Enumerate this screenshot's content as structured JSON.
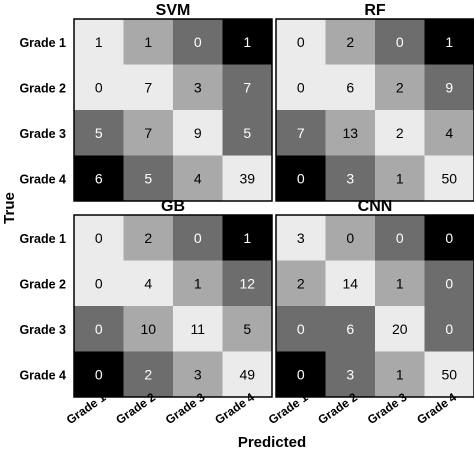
{
  "chart_data": [
    {
      "type": "heatmap",
      "title": "SVM",
      "rows": [
        "Grade 1",
        "Grade 2",
        "Grade 3",
        "Grade 4"
      ],
      "columns": [
        "Grade 1",
        "Grade 2",
        "Grade 3",
        "Grade 4"
      ],
      "values": [
        [
          1,
          1,
          0,
          1
        ],
        [
          0,
          7,
          3,
          7
        ],
        [
          5,
          7,
          9,
          5
        ],
        [
          6,
          5,
          4,
          39
        ]
      ],
      "shades": [
        [
          "#ebebeb",
          "#a9a9a9",
          "#6d6d6d",
          "#000000"
        ],
        [
          "#ebebeb",
          "#ebebeb",
          "#a9a9a9",
          "#6d6d6d"
        ],
        [
          "#6d6d6d",
          "#a9a9a9",
          "#ebebeb",
          "#6d6d6d"
        ],
        [
          "#000000",
          "#6d6d6d",
          "#a9a9a9",
          "#ebebeb"
        ]
      ]
    },
    {
      "type": "heatmap",
      "title": "RF",
      "rows": [
        "Grade 1",
        "Grade 2",
        "Grade 3",
        "Grade 4"
      ],
      "columns": [
        "Grade 1",
        "Grade 2",
        "Grade 3",
        "Grade 4"
      ],
      "values": [
        [
          0,
          2,
          0,
          1
        ],
        [
          0,
          6,
          2,
          9
        ],
        [
          7,
          13,
          2,
          4
        ],
        [
          0,
          3,
          1,
          50
        ]
      ],
      "shades": [
        [
          "#ebebeb",
          "#a9a9a9",
          "#6d6d6d",
          "#000000"
        ],
        [
          "#ebebeb",
          "#ebebeb",
          "#a9a9a9",
          "#6d6d6d"
        ],
        [
          "#6d6d6d",
          "#a9a9a9",
          "#ebebeb",
          "#a9a9a9"
        ],
        [
          "#000000",
          "#6d6d6d",
          "#a9a9a9",
          "#ebebeb"
        ]
      ]
    },
    {
      "type": "heatmap",
      "title": "GB",
      "rows": [
        "Grade 1",
        "Grade 2",
        "Grade 3",
        "Grade 4"
      ],
      "columns": [
        "Grade 1",
        "Grade 2",
        "Grade 3",
        "Grade 4"
      ],
      "values": [
        [
          0,
          2,
          0,
          1
        ],
        [
          0,
          4,
          1,
          12
        ],
        [
          0,
          10,
          11,
          5
        ],
        [
          0,
          2,
          3,
          49
        ]
      ],
      "shades": [
        [
          "#ebebeb",
          "#a9a9a9",
          "#6d6d6d",
          "#000000"
        ],
        [
          "#ebebeb",
          "#ebebeb",
          "#a9a9a9",
          "#6d6d6d"
        ],
        [
          "#6d6d6d",
          "#a9a9a9",
          "#ebebeb",
          "#a9a9a9"
        ],
        [
          "#000000",
          "#6d6d6d",
          "#a9a9a9",
          "#ebebeb"
        ]
      ]
    },
    {
      "type": "heatmap",
      "title": "CNN",
      "rows": [
        "Grade 1",
        "Grade 2",
        "Grade 3",
        "Grade 4"
      ],
      "columns": [
        "Grade 1",
        "Grade 2",
        "Grade 3",
        "Grade 4"
      ],
      "values": [
        [
          3,
          0,
          0,
          0
        ],
        [
          2,
          14,
          1,
          0
        ],
        [
          0,
          6,
          20,
          0
        ],
        [
          0,
          3,
          1,
          50
        ]
      ],
      "shades": [
        [
          "#ebebeb",
          "#a9a9a9",
          "#6d6d6d",
          "#000000"
        ],
        [
          "#a9a9a9",
          "#ebebeb",
          "#a9a9a9",
          "#6d6d6d"
        ],
        [
          "#6d6d6d",
          "#6d6d6d",
          "#ebebeb",
          "#6d6d6d"
        ],
        [
          "#000000",
          "#6d6d6d",
          "#a9a9a9",
          "#ebebeb"
        ]
      ]
    }
  ],
  "ylabel": "True",
  "xlabel": "Predicted",
  "row_labels": [
    "Grade 1",
    "Grade 2",
    "Grade 3",
    "Grade 4"
  ],
  "col_labels": [
    "Grade 1",
    "Grade 2",
    "Grade 3",
    "Grade 4"
  ]
}
